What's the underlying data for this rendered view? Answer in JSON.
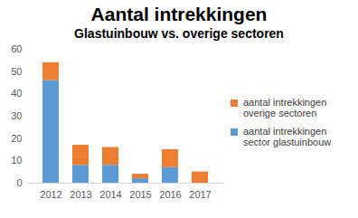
{
  "chart_data": {
    "type": "bar",
    "stacked": true,
    "title": "Aantal intrekkingen",
    "subtitle": "Glastuinbouw vs. overige sectoren",
    "categories": [
      "2012",
      "2013",
      "2014",
      "2015",
      "2016",
      "2017"
    ],
    "series": [
      {
        "name": "aantal intrekkingen sector glastuinbouw",
        "color": "#5b9bd5",
        "values": [
          46,
          8,
          8,
          2,
          7,
          0
        ]
      },
      {
        "name": "aantal intrekkingen overige sectoren",
        "color": "#ed7d31",
        "values": [
          8,
          9,
          8,
          2,
          8,
          5
        ]
      }
    ],
    "ylim": [
      0,
      60
    ],
    "yticks": [
      0,
      10,
      20,
      30,
      40,
      50,
      60
    ],
    "grid": false,
    "legend": "right"
  }
}
